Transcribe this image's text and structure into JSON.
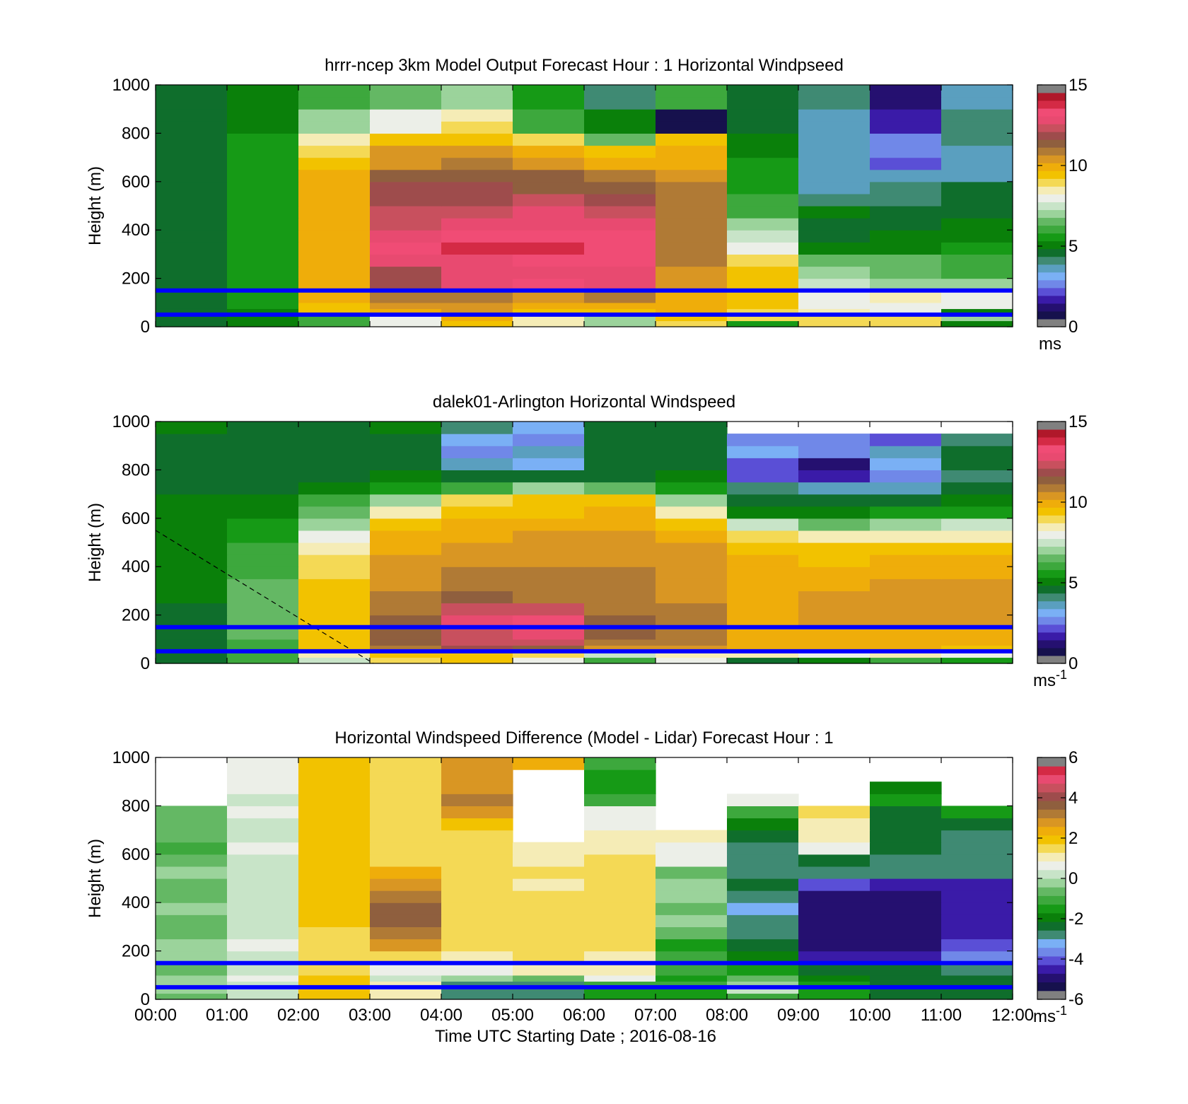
{
  "colormaps": {
    "wind": [
      "#808080",
      "#16114d",
      "#251070",
      "#3a1ba8",
      "#5a4fd6",
      "#7088e8",
      "#7ab0f5",
      "#5a9fbf",
      "#3f8a73",
      "#0f6e2c",
      "#0a800a",
      "#169a16",
      "#3da83d",
      "#64b864",
      "#9bd39b",
      "#c8e4c8",
      "#ecefe8",
      "#f5ecb6",
      "#f4d955",
      "#f2c200",
      "#efad0a",
      "#d99623",
      "#b07a35",
      "#8f5f3e",
      "#9e4c4c",
      "#c8505e",
      "#e84a70",
      "#f04c75",
      "#d42a45",
      "#b0182a",
      "#808080"
    ],
    "diff": [
      "#808080",
      "#16114d",
      "#251070",
      "#3a1ba8",
      "#5a4fd6",
      "#7088e8",
      "#7ab0f5",
      "#3f8a73",
      "#0f6e2c",
      "#0a800a",
      "#169a16",
      "#3da83d",
      "#64b864",
      "#9bd39b",
      "#c8e4c8",
      "#ecefe8",
      "#f5ecb6",
      "#f4d955",
      "#f2c200",
      "#efad0a",
      "#d99623",
      "#b07a35",
      "#8f5f3e",
      "#9e4c4c",
      "#c8505e",
      "#e84a70",
      "#d42a45",
      "#808080"
    ]
  },
  "chart_data": [
    {
      "type": "heatmap",
      "title": "hrrr-ncep 3km Model Output   Forecast Hour : 1 Horizontal Windpseed",
      "ylabel": "Height (m)",
      "xlabel": "",
      "xlim": [
        0,
        12
      ],
      "ylim": [
        0,
        1000
      ],
      "yticks": [
        0,
        200,
        400,
        600,
        800,
        1000
      ],
      "x_tick_labels": [],
      "colorbar": {
        "cmap": "wind",
        "range": [
          0,
          15
        ],
        "ticks": [
          0,
          5,
          10,
          15
        ],
        "units": "ms",
        "units_sup": ""
      },
      "reference_lines": [
        {
          "y": 150,
          "color": "#0000ff"
        },
        {
          "y": 50,
          "color": "#0000ff"
        }
      ],
      "hour_bins": [
        0,
        1,
        2,
        3,
        4,
        5,
        6,
        7,
        8,
        9,
        10,
        11
      ],
      "height_edges": [
        0,
        25,
        50,
        75,
        100,
        150,
        200,
        250,
        300,
        350,
        400,
        450,
        500,
        550,
        600,
        650,
        700,
        750,
        800,
        850,
        900,
        950,
        1000
      ],
      "values": [
        [
          4.5,
          4.8,
          6.0,
          7.8,
          9.5,
          8.5,
          7.0,
          9.0,
          5.3,
          9.0,
          9.2,
          5.0
        ],
        [
          4.5,
          4.8,
          6.0,
          8.2,
          10.0,
          8.5,
          7.0,
          9.5,
          9.0,
          8.8,
          8.8,
          7.2
        ],
        [
          4.5,
          4.8,
          9.5,
          10.2,
          10.5,
          9.8,
          9.5,
          10.0,
          9.3,
          8.5,
          8.0,
          4.8
        ],
        [
          4.5,
          5.2,
          9.8,
          10.5,
          10.8,
          10.2,
          10.2,
          10.2,
          9.5,
          8.0,
          8.0,
          8.0
        ],
        [
          4.5,
          5.2,
          10.0,
          11.0,
          11.0,
          10.8,
          11.0,
          10.2,
          9.8,
          7.8,
          8.5,
          8.0
        ],
        [
          4.5,
          5.5,
          10.0,
          12.2,
          13.0,
          13.5,
          13.3,
          10.8,
          9.8,
          7.5,
          7.2,
          7.0
        ],
        [
          4.5,
          5.5,
          10.0,
          12.3,
          13.2,
          13.3,
          13.3,
          10.8,
          9.5,
          6.8,
          6.7,
          6.2
        ],
        [
          4.5,
          5.6,
          10.0,
          13.0,
          13.4,
          13.8,
          13.5,
          11.0,
          8.8,
          6.5,
          6.5,
          6.2
        ],
        [
          4.5,
          5.6,
          10.2,
          13.6,
          14.0,
          14.3,
          13.6,
          11.0,
          7.9,
          4.8,
          5.1,
          5.6
        ],
        [
          4.5,
          5.6,
          10.0,
          13.3,
          13.5,
          13.8,
          13.6,
          11.0,
          7.5,
          4.5,
          4.8,
          5.0
        ],
        [
          4.5,
          5.6,
          10.0,
          12.8,
          13.1,
          13.4,
          13.0,
          11.0,
          6.8,
          4.5,
          4.5,
          4.8
        ],
        [
          4.5,
          5.6,
          10.0,
          12.5,
          12.8,
          13.1,
          12.5,
          11.0,
          6.0,
          4.8,
          4.6,
          4.5
        ],
        [
          4.5,
          5.6,
          10.0,
          12.2,
          12.4,
          12.6,
          12.0,
          11.0,
          5.8,
          3.8,
          4.0,
          4.5
        ],
        [
          4.5,
          5.6,
          10.0,
          12.0,
          12.0,
          11.8,
          11.8,
          11.0,
          5.6,
          3.6,
          3.8,
          4.5
        ],
        [
          4.5,
          5.5,
          10.0,
          11.5,
          11.6,
          11.4,
          11.0,
          10.5,
          5.4,
          3.4,
          3.6,
          3.5
        ],
        [
          4.5,
          5.3,
          9.5,
          10.8,
          11.0,
          10.8,
          10.2,
          10.3,
          5.2,
          3.4,
          2.0,
          3.5
        ],
        [
          4.5,
          5.3,
          9.2,
          10.5,
          10.5,
          10.2,
          9.6,
          10.2,
          4.8,
          3.3,
          2.2,
          3.6
        ],
        [
          4.5,
          5.2,
          8.5,
          9.5,
          9.7,
          9.2,
          6.6,
          9.8,
          4.8,
          3.3,
          2.2,
          3.8
        ],
        [
          4.5,
          5.1,
          7.0,
          8.0,
          8.8,
          6.2,
          4.8,
          0.0,
          4.6,
          3.2,
          1.3,
          3.9
        ],
        [
          4.5,
          5.0,
          7.0,
          8.0,
          8.5,
          6.2,
          4.8,
          0.0,
          4.5,
          3.2,
          1.3,
          3.9
        ],
        [
          4.5,
          5.0,
          6.0,
          6.5,
          7.0,
          5.4,
          3.8,
          5.8,
          4.3,
          3.9,
          1.0,
          3.6
        ],
        [
          4.5,
          5.0,
          6.0,
          6.3,
          6.8,
          5.4,
          3.8,
          5.8,
          4.3,
          3.9,
          1.0,
          3.6
        ]
      ]
    },
    {
      "type": "heatmap",
      "title": "dalek01-Arlington  Horizontal Windspeed",
      "ylabel": "Height (m)",
      "xlabel": "",
      "xlim": [
        0,
        12
      ],
      "ylim": [
        0,
        1000
      ],
      "yticks": [
        0,
        200,
        400,
        600,
        800,
        1000
      ],
      "x_tick_labels": [],
      "colorbar": {
        "cmap": "wind",
        "range": [
          0,
          15
        ],
        "ticks": [
          0,
          5,
          10,
          15
        ],
        "units": "ms",
        "units_sup": "-1"
      },
      "reference_lines": [
        {
          "y": 150,
          "color": "#0000ff"
        },
        {
          "y": 50,
          "color": "#0000ff"
        }
      ],
      "dashed_line": [
        [
          0,
          550
        ],
        [
          3.05,
          0
        ]
      ],
      "hour_bins": [
        0,
        1,
        2,
        3,
        4,
        5,
        6,
        7,
        8,
        9,
        10,
        11
      ],
      "height_edges": [
        0,
        25,
        50,
        75,
        100,
        150,
        200,
        250,
        300,
        350,
        400,
        450,
        500,
        550,
        600,
        650,
        700,
        750,
        800,
        850,
        900,
        950,
        1000
      ],
      "values": [
        [
          4.5,
          6.0,
          7.5,
          9.0,
          9.5,
          7.8,
          6.0,
          7.8,
          4.5,
          5.0,
          6.0,
          5.5
        ],
        [
          4.5,
          6.0,
          8.5,
          9.5,
          9.8,
          9.0,
          7.5,
          8.5,
          8.5,
          8.0,
          8.5,
          8.0
        ],
        [
          4.5,
          6.2,
          9.5,
          11.0,
          12.0,
          11.5,
          10.5,
          10.5,
          10.0,
          10.0,
          10.0,
          9.8
        ],
        [
          4.5,
          6.2,
          9.5,
          11.5,
          12.5,
          12.5,
          11.0,
          11.0,
          10.0,
          10.0,
          10.0,
          10.0
        ],
        [
          4.5,
          6.5,
          9.5,
          11.5,
          12.8,
          13.0,
          11.5,
          11.2,
          10.2,
          10.2,
          10.2,
          10.2
        ],
        [
          4.6,
          6.5,
          9.5,
          11.5,
          13.3,
          13.5,
          11.5,
          11.2,
          10.2,
          10.4,
          10.5,
          10.5
        ],
        [
          4.6,
          6.5,
          9.5,
          11.2,
          12.5,
          12.5,
          11.0,
          11.2,
          10.2,
          10.4,
          10.5,
          10.5
        ],
        [
          4.7,
          6.5,
          9.5,
          11.0,
          11.5,
          11.3,
          11.0,
          10.8,
          10.2,
          10.4,
          10.6,
          10.6
        ],
        [
          4.7,
          6.4,
          9.4,
          10.8,
          11.2,
          11.0,
          11.0,
          10.8,
          10.2,
          10.2,
          10.6,
          10.6
        ],
        [
          4.8,
          6.2,
          9.2,
          10.8,
          11.0,
          11.0,
          11.0,
          10.8,
          10.0,
          10.0,
          10.2,
          10.2
        ],
        [
          4.8,
          6.0,
          9.0,
          10.5,
          10.8,
          10.8,
          10.8,
          10.6,
          10.0,
          9.8,
          10.0,
          10.0
        ],
        [
          5.0,
          5.8,
          8.5,
          10.3,
          10.6,
          10.6,
          10.6,
          10.4,
          9.8,
          9.5,
          9.8,
          9.8
        ],
        [
          5.0,
          5.6,
          8.0,
          10.0,
          10.2,
          10.4,
          10.4,
          10.0,
          9.0,
          8.5,
          8.5,
          8.5
        ],
        [
          5.0,
          5.4,
          7.0,
          9.5,
          10.0,
          10.2,
          10.2,
          9.5,
          7.5,
          6.5,
          6.8,
          7.5
        ],
        [
          5.0,
          5.0,
          6.5,
          8.5,
          9.8,
          9.8,
          10.0,
          8.5,
          5.0,
          5.0,
          5.2,
          5.5
        ],
        [
          4.8,
          4.8,
          6.0,
          7.0,
          9.0,
          9.5,
          9.5,
          7.0,
          4.5,
          4.2,
          4.5,
          4.8
        ],
        [
          4.6,
          4.5,
          5.0,
          5.5,
          6.0,
          7.0,
          6.5,
          5.5,
          3.8,
          3.2,
          3.6,
          4.3
        ],
        [
          4.5,
          4.4,
          4.6,
          4.8,
          4.5,
          4.2,
          4.5,
          4.8,
          2.0,
          1.4,
          2.5,
          4.0
        ],
        [
          4.5,
          4.3,
          4.5,
          4.6,
          3.5,
          3.0,
          4.2,
          4.6,
          2.0,
          1.0,
          2.8,
          4.5
        ],
        [
          4.5,
          4.3,
          4.4,
          4.5,
          2.5,
          3.5,
          4.2,
          4.5,
          3.0,
          2.5,
          3.5,
          4.5
        ],
        [
          4.5,
          4.3,
          4.4,
          4.5,
          3.0,
          2.5,
          4.2,
          4.3,
          2.5,
          2.2,
          1.8,
          4.0
        ],
        [
          4.8,
          4.6,
          4.5,
          4.8,
          3.8,
          2.8,
          4.5,
          4.5,
          null,
          null,
          null,
          null
        ]
      ]
    },
    {
      "type": "heatmap",
      "title": "Horizontal Windspeed Difference (Model - Lidar) Forecast Hour : 1",
      "ylabel": "Height (m)",
      "xlabel": "Time UTC  Starting Date ; 2016-08-16",
      "xlim": [
        0,
        12
      ],
      "ylim": [
        0,
        1000
      ],
      "yticks": [
        0,
        200,
        400,
        600,
        800,
        1000
      ],
      "x_tick_labels": [
        "00:00",
        "01:00",
        "02:00",
        "03:00",
        "04:00",
        "05:00",
        "06:00",
        "07:00",
        "08:00",
        "09:00",
        "10:00",
        "11:00",
        "12:00"
      ],
      "colorbar": {
        "cmap": "diff",
        "range": [
          -6,
          6
        ],
        "ticks": [
          -6,
          -4,
          -2,
          0,
          2,
          4,
          6
        ],
        "units": "ms",
        "units_sup": "-1"
      },
      "reference_lines": [
        {
          "y": 150,
          "color": "#0000ff"
        },
        {
          "y": 50,
          "color": "#0000ff"
        }
      ],
      "hour_bins": [
        0,
        1,
        2,
        3,
        4,
        5,
        6,
        7,
        8,
        9,
        10,
        11
      ],
      "height_edges": [
        0,
        25,
        50,
        75,
        100,
        150,
        200,
        250,
        300,
        350,
        400,
        450,
        500,
        550,
        600,
        650,
        700,
        750,
        800,
        850,
        900,
        950,
        1000
      ],
      "values": [
        [
          -0.6,
          0.2,
          2.0,
          1.0,
          -2.8,
          -2.8,
          -1.8,
          -1.5,
          -1.0,
          -1.5,
          -2.5,
          -2.5
        ],
        [
          -0.4,
          0.3,
          2.0,
          1.0,
          -3.0,
          -3.0,
          -1.5,
          -1.5,
          0.0,
          -1.5,
          -2.5,
          -2.5
        ],
        [
          -0.3,
          0.3,
          2.0,
          1.2,
          -3.0,
          -3.0,
          -1.2,
          -1.2,
          -0.2,
          -1.8,
          -2.5,
          -2.5
        ],
        [
          -0.2,
          0.5,
          2.0,
          0.3,
          -0.3,
          -0.5,
          0.5,
          -1.5,
          -0.5,
          -2.0,
          -2.5,
          -2.5
        ],
        [
          -0.5,
          0.3,
          1.8,
          0.8,
          0.8,
          1.0,
          1.0,
          -1.3,
          -1.5,
          -2.5,
          -2.5,
          -3.2
        ],
        [
          -0.3,
          0.4,
          1.8,
          1.5,
          1.3,
          1.5,
          1.3,
          -1.2,
          -2.0,
          -5.0,
          -5.0,
          -4.0
        ],
        [
          -0.2,
          0.5,
          1.8,
          3.0,
          1.5,
          1.5,
          1.5,
          -1.5,
          -2.5,
          -5.3,
          -5.5,
          -4.5
        ],
        [
          -0.5,
          0.3,
          1.8,
          3.5,
          1.5,
          1.5,
          1.5,
          -0.5,
          -3.0,
          -5.3,
          -5.5,
          -5.0
        ],
        [
          -0.6,
          0.4,
          2.0,
          4.0,
          1.6,
          1.5,
          1.8,
          -0.4,
          -3.2,
          -5.5,
          -5.5,
          -5.0
        ],
        [
          -0.4,
          0.3,
          2.0,
          3.8,
          1.6,
          1.5,
          1.8,
          -0.5,
          -3.5,
          -5.5,
          -5.5,
          -5.0
        ],
        [
          -0.5,
          0.4,
          2.0,
          3.5,
          1.6,
          1.5,
          1.6,
          -0.3,
          -3.2,
          -5.3,
          -5.3,
          -5.0
        ],
        [
          -0.6,
          0.3,
          2.0,
          3.0,
          1.6,
          1.2,
          1.5,
          -0.4,
          -2.5,
          -4.5,
          -4.8,
          -4.8
        ],
        [
          -0.4,
          0.3,
          2.0,
          2.5,
          1.6,
          1.4,
          1.5,
          -0.5,
          -3.0,
          -2.8,
          -3.2,
          -2.8
        ],
        [
          -0.5,
          0.3,
          2.0,
          1.8,
          1.6,
          1.2,
          1.5,
          0.8,
          -3.0,
          -2.5,
          -2.8,
          -2.8
        ],
        [
          -1.0,
          0.5,
          2.0,
          1.6,
          1.6,
          1.0,
          1.2,
          0.5,
          -2.8,
          0.8,
          -2.5,
          -2.8
        ],
        [
          -0.8,
          0.4,
          2.0,
          1.6,
          1.8,
          null,
          1.2,
          1.0,
          -2.5,
          1.0,
          -2.5,
          -2.8
        ],
        [
          -0.6,
          0.4,
          2.0,
          1.6,
          2.0,
          null,
          0.8,
          null,
          -2.0,
          1.2,
          -2.5,
          -2.5
        ],
        [
          -0.5,
          0.5,
          2.0,
          1.6,
          3.0,
          null,
          0.5,
          null,
          -1.0,
          1.8,
          -2.5,
          -1.8
        ],
        [
          null,
          0.4,
          2.0,
          1.6,
          3.5,
          null,
          -1.0,
          null,
          0.5,
          null,
          -1.5,
          null
        ],
        [
          null,
          0.6,
          2.0,
          1.6,
          3.0,
          null,
          -1.5,
          null,
          null,
          null,
          -2.0,
          null
        ],
        [
          null,
          0.6,
          2.0,
          1.5,
          3.0,
          null,
          -1.5,
          null,
          null,
          null,
          null,
          null
        ],
        [
          null,
          0.8,
          2.0,
          1.6,
          3.0,
          2.5,
          -1.2,
          null,
          null,
          null,
          null,
          null
        ]
      ]
    }
  ]
}
